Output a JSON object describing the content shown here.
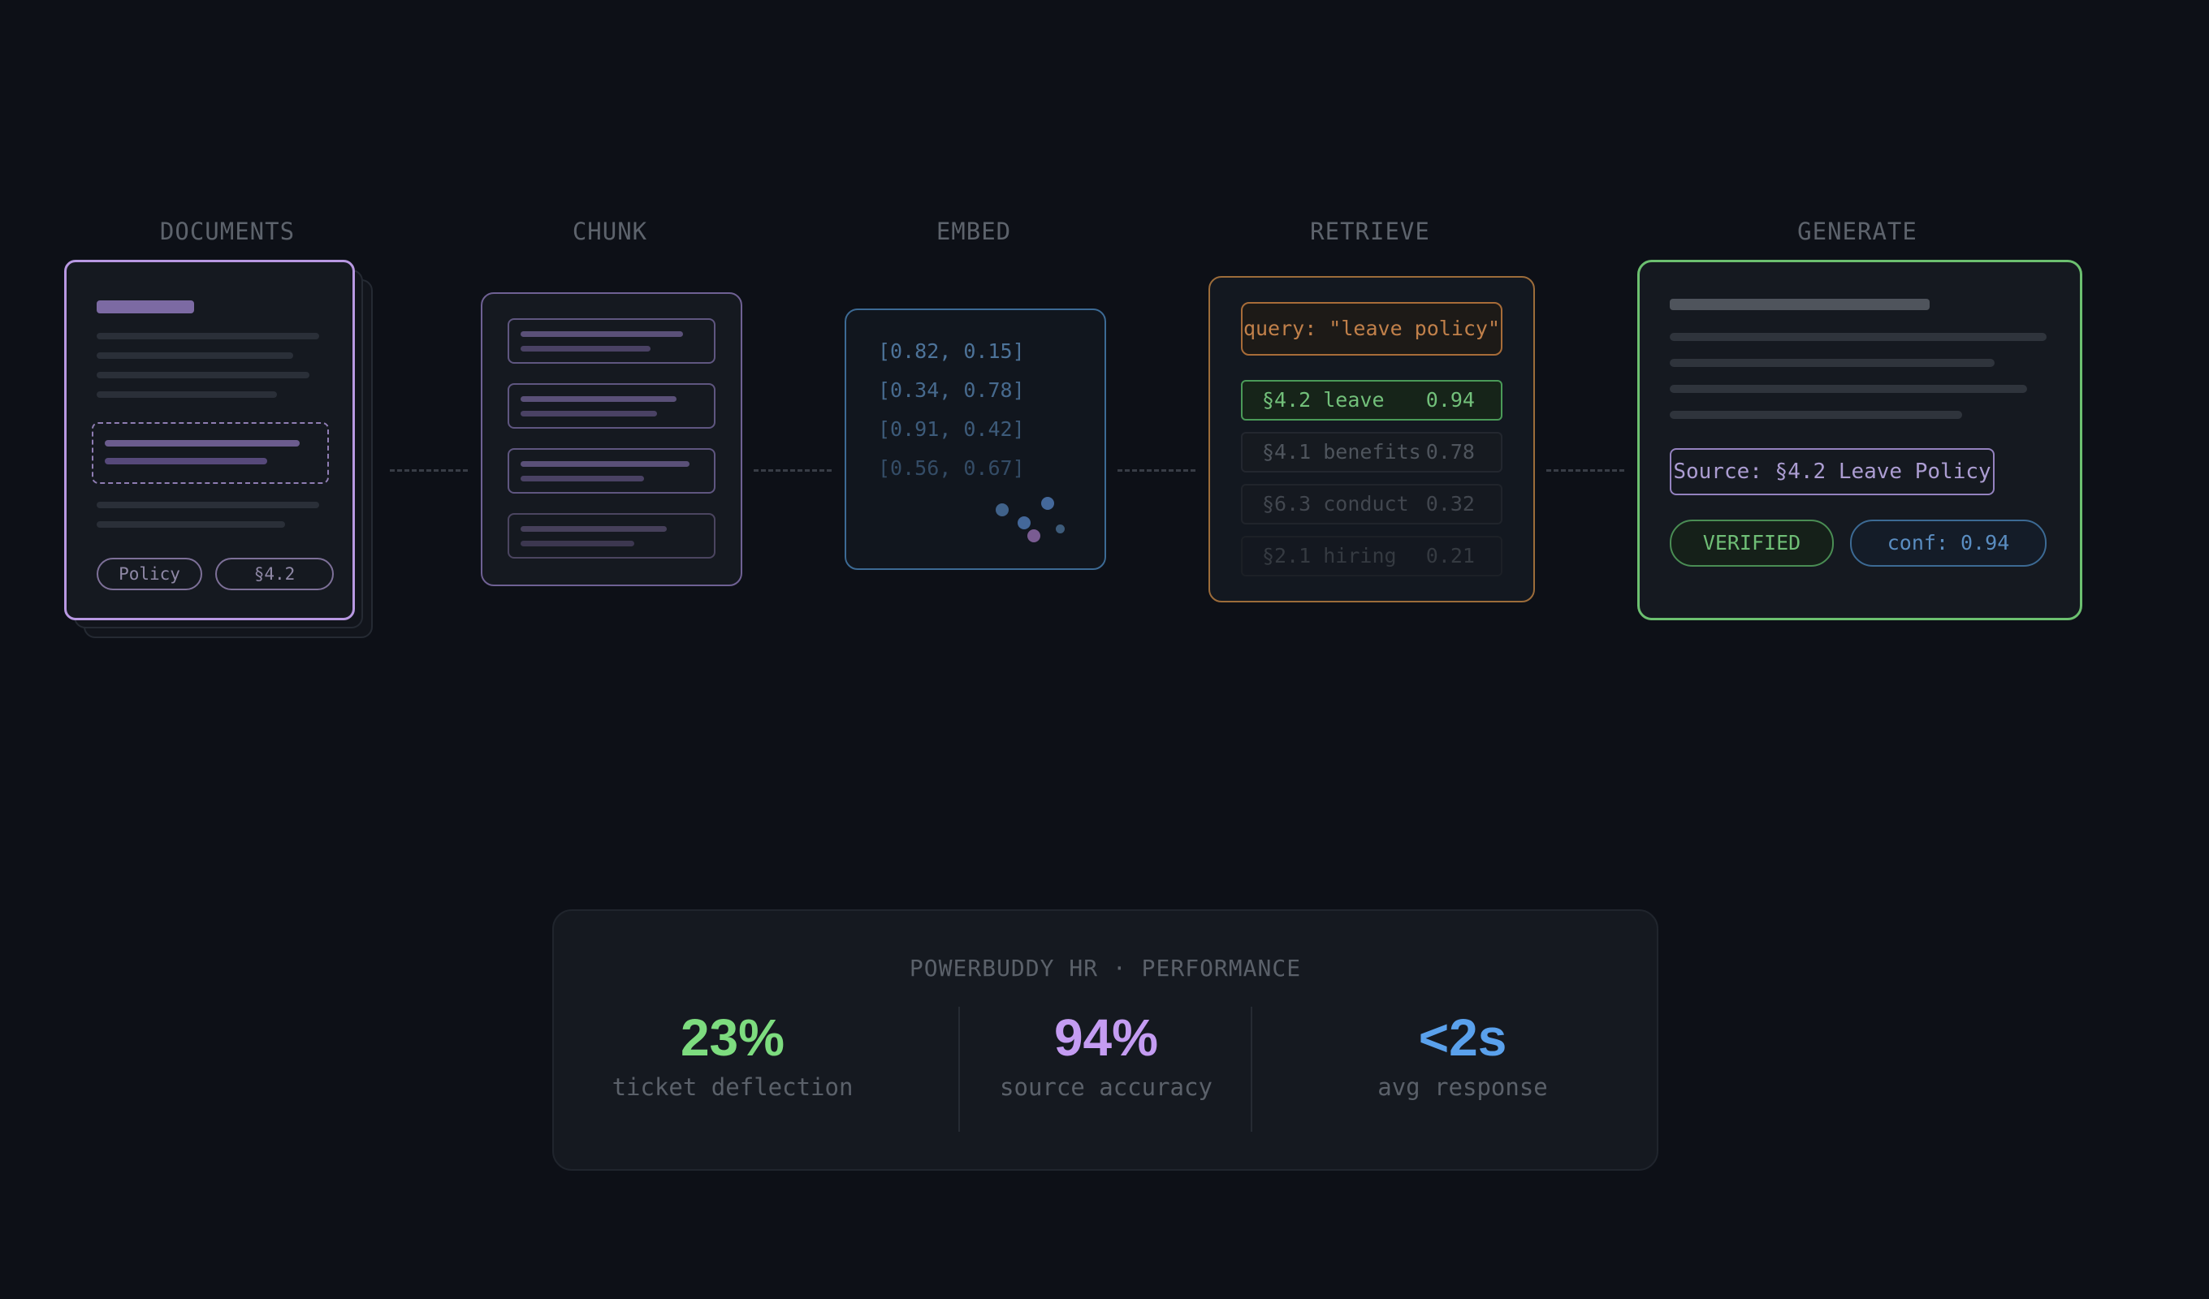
{
  "stages": {
    "documents": "DOCUMENTS",
    "chunk": "CHUNK",
    "embed": "EMBED",
    "retrieve": "RETRIEVE",
    "generate": "GENERATE"
  },
  "documents": {
    "tags": [
      "Policy",
      "§4.2"
    ]
  },
  "embed": {
    "vectors": [
      "[0.82, 0.15]",
      "[0.34, 0.78]",
      "[0.91, 0.42]",
      "[0.56, 0.67]"
    ]
  },
  "retrieve": {
    "query": "query: \"leave policy\"",
    "results": [
      {
        "label": "§4.2 leave",
        "score": "0.94",
        "selected": true
      },
      {
        "label": "§4.1 benefits",
        "score": "0.78",
        "selected": false
      },
      {
        "label": "§6.3 conduct",
        "score": "0.32",
        "selected": false
      },
      {
        "label": "§2.1 hiring",
        "score": "0.21",
        "selected": false
      }
    ]
  },
  "generate": {
    "source": "Source: §4.2 Leave Policy",
    "verified": "VERIFIED",
    "confidence": "conf: 0.94"
  },
  "performance": {
    "title": "POWERBUDDY HR · PERFORMANCE",
    "metrics": [
      {
        "value": "23%",
        "label": "ticket deflection",
        "color": "#7ddc7f"
      },
      {
        "value": "94%",
        "label": "source accuracy",
        "color": "#c49cf2"
      },
      {
        "value": "<2s",
        "label": "avg response",
        "color": "#5aa1ec"
      }
    ]
  },
  "colors": {
    "background": "#0d1017",
    "documents": "#b898e2",
    "chunk": "#6f6194",
    "embed": "#3c6a94",
    "retrieve": "#9c6c3a",
    "generate": "#6cc070"
  }
}
